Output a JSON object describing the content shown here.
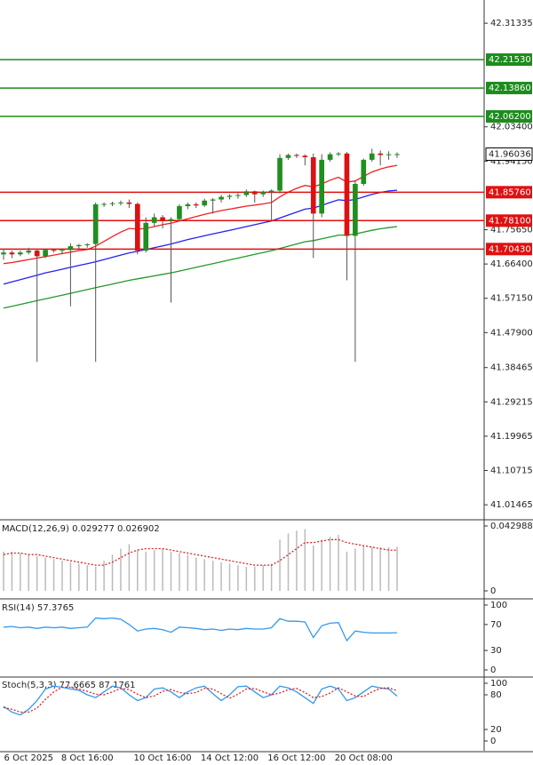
{
  "chart_data": [
    {
      "type": "candlestick",
      "ylim": [
        40.979,
        42.376
      ],
      "yticks": [
        42.31335,
        {
          "value": 42.034,
          "label": "42.03400"
        },
        {
          "value": 41.9415,
          "label": "41.94150"
        },
        {
          "value": 41.7565,
          "label": "41.75650"
        },
        {
          "value": 41.664,
          "label": "41.66400"
        },
        {
          "value": 41.5715,
          "label": "41.57150"
        },
        {
          "value": 41.479,
          "label": "41.47900"
        },
        41.38465,
        41.29215,
        41.19965,
        41.10715,
        41.01465
      ],
      "up_color": "#1f8f1f",
      "down_color": "#dd1111",
      "open": [
        41.69,
        41.695,
        41.69,
        41.695,
        41.7,
        41.685,
        41.702,
        41.7,
        41.702,
        41.712,
        41.715,
        41.718,
        41.825,
        41.826,
        41.828,
        41.83,
        41.826,
        41.7,
        41.775,
        41.79,
        41.78,
        41.785,
        41.82,
        41.825,
        41.822,
        41.835,
        41.838,
        41.845,
        41.848,
        41.85,
        41.86,
        41.852,
        41.858,
        41.862,
        41.95,
        41.958,
        41.956,
        41.952,
        41.8,
        41.945,
        41.96,
        41.962,
        41.74,
        41.88,
        41.945,
        41.962,
        41.958,
        41.96
      ],
      "high": [
        41.705,
        41.7,
        41.7,
        41.708,
        41.705,
        41.705,
        41.706,
        41.706,
        41.72,
        41.718,
        41.72,
        41.83,
        41.83,
        41.832,
        41.835,
        41.838,
        41.83,
        41.79,
        41.8,
        41.796,
        41.79,
        41.825,
        41.83,
        41.83,
        41.84,
        41.842,
        41.85,
        41.852,
        41.855,
        41.865,
        41.862,
        41.862,
        41.865,
        41.96,
        41.962,
        41.962,
        41.96,
        41.962,
        41.96,
        41.965,
        41.966,
        41.966,
        41.89,
        41.948,
        41.975,
        41.97,
        41.968,
        41.965
      ],
      "low": [
        41.675,
        41.68,
        41.685,
        41.69,
        41.4,
        41.68,
        41.695,
        41.69,
        41.55,
        41.705,
        41.708,
        41.4,
        41.818,
        41.82,
        41.822,
        41.815,
        41.69,
        41.695,
        41.765,
        41.76,
        41.56,
        41.78,
        41.812,
        41.815,
        41.818,
        41.8,
        41.83,
        41.838,
        41.84,
        41.845,
        41.83,
        41.845,
        41.78,
        41.855,
        41.945,
        41.95,
        41.93,
        41.68,
        41.79,
        41.94,
        41.955,
        41.62,
        41.4,
        41.875,
        41.94,
        41.93,
        41.945,
        41.95
      ],
      "close": [
        41.695,
        41.69,
        41.695,
        41.7,
        41.685,
        41.702,
        41.7,
        41.702,
        41.712,
        41.715,
        41.717,
        41.825,
        41.826,
        41.828,
        41.83,
        41.826,
        41.7,
        41.775,
        41.79,
        41.78,
        41.785,
        41.82,
        41.825,
        41.822,
        41.835,
        41.838,
        41.845,
        41.848,
        41.85,
        41.86,
        41.852,
        41.858,
        41.862,
        41.95,
        41.958,
        41.956,
        41.952,
        41.8,
        41.945,
        41.96,
        41.962,
        41.74,
        41.88,
        41.945,
        41.962,
        41.958,
        41.96,
        41.96036
      ],
      "overlays": [
        {
          "color": "#ee2222",
          "values": [
            41.665,
            41.668,
            41.672,
            41.676,
            41.68,
            41.684,
            41.688,
            41.692,
            41.696,
            41.7,
            41.703,
            41.712,
            41.725,
            41.738,
            41.75,
            41.76,
            41.758,
            41.76,
            41.765,
            41.77,
            41.774,
            41.78,
            41.786,
            41.792,
            41.798,
            41.803,
            41.808,
            41.812,
            41.816,
            41.82,
            41.823,
            41.826,
            41.83,
            41.845,
            41.858,
            41.868,
            41.876,
            41.872,
            41.88,
            41.89,
            41.898,
            41.885,
            41.888,
            41.9,
            41.912,
            41.92,
            41.926,
            41.93
          ]
        },
        {
          "color": "#2222ee",
          "values": [
            41.61,
            41.616,
            41.622,
            41.628,
            41.634,
            41.64,
            41.645,
            41.65,
            41.655,
            41.66,
            41.665,
            41.67,
            41.676,
            41.682,
            41.688,
            41.694,
            41.698,
            41.703,
            41.708,
            41.713,
            41.718,
            41.724,
            41.73,
            41.735,
            41.74,
            41.745,
            41.75,
            41.755,
            41.76,
            41.765,
            41.77,
            41.775,
            41.78,
            41.788,
            41.796,
            41.804,
            41.812,
            41.815,
            41.822,
            41.83,
            41.837,
            41.835,
            41.838,
            41.845,
            41.852,
            41.857,
            41.861,
            41.863
          ]
        },
        {
          "color": "#22992a",
          "values": [
            41.545,
            41.55,
            41.555,
            41.56,
            41.565,
            41.57,
            41.575,
            41.58,
            41.585,
            41.59,
            41.595,
            41.6,
            41.605,
            41.61,
            41.615,
            41.62,
            41.624,
            41.628,
            41.632,
            41.636,
            41.64,
            41.645,
            41.65,
            41.655,
            41.66,
            41.665,
            41.67,
            41.675,
            41.68,
            41.685,
            41.69,
            41.695,
            41.7,
            41.706,
            41.712,
            41.718,
            41.724,
            41.727,
            41.732,
            41.737,
            41.742,
            41.742,
            41.745,
            41.75,
            41.755,
            41.759,
            41.762,
            41.765
          ]
        }
      ],
      "levels": [
        {
          "value": 42.2153,
          "label": "42.21530",
          "color": "#1c8c1c"
        },
        {
          "value": 42.1386,
          "label": "42.13860",
          "color": "#1c8c1c"
        },
        {
          "value": 42.062,
          "label": "42.06200",
          "color": "#1c8c1c"
        },
        {
          "value": 41.8576,
          "label": "41.85760",
          "color": "#e01010"
        },
        {
          "value": 41.781,
          "label": "41.78100",
          "color": "#e01010"
        },
        {
          "value": 41.7043,
          "label": "41.70430",
          "color": "#e01010"
        }
      ],
      "last_price": {
        "value": 41.96036,
        "label": "41.96036",
        "color": "#000000"
      }
    },
    {
      "type": "macd",
      "title": "MACD(12,26,9) 0.029277 0.026902",
      "ylim": [
        -0.00412,
        0.04593
      ],
      "yticks": [
        0,
        0.042988
      ],
      "color": "#bbbbbb",
      "signal_color": "#e02020",
      "values": [
        0.026,
        0.026,
        0.025,
        0.024,
        0.023,
        0.022,
        0.021,
        0.02,
        0.019,
        0.018,
        0.017,
        0.016,
        0.02,
        0.024,
        0.028,
        0.031,
        0.027,
        0.026,
        0.027,
        0.028,
        0.026,
        0.025,
        0.024,
        0.022,
        0.021,
        0.02,
        0.019,
        0.018,
        0.017,
        0.016,
        0.016,
        0.017,
        0.018,
        0.034,
        0.038,
        0.04,
        0.041,
        0.03,
        0.034,
        0.036,
        0.037,
        0.026,
        0.028,
        0.03,
        0.029,
        0.029,
        0.029,
        0.029277
      ],
      "signal": [
        0.024,
        0.025,
        0.025,
        0.024,
        0.024,
        0.023,
        0.022,
        0.021,
        0.02,
        0.019,
        0.018,
        0.017,
        0.017,
        0.019,
        0.022,
        0.025,
        0.027,
        0.028,
        0.028,
        0.028,
        0.027,
        0.026,
        0.025,
        0.024,
        0.023,
        0.022,
        0.021,
        0.02,
        0.019,
        0.018,
        0.017,
        0.017,
        0.017,
        0.02,
        0.024,
        0.028,
        0.032,
        0.032,
        0.033,
        0.034,
        0.034,
        0.032,
        0.031,
        0.03,
        0.029,
        0.028,
        0.027,
        0.026902
      ]
    },
    {
      "type": "line",
      "title": "RSI(14) 57.3765",
      "ylim": [
        -8.2,
        106.8
      ],
      "yticks": [
        0,
        30,
        70,
        100
      ],
      "series": [
        {
          "color": "#3399ee",
          "values": [
            66,
            67,
            65,
            66,
            64,
            66,
            65,
            66,
            64,
            65,
            66,
            80,
            79,
            80,
            78,
            70,
            60,
            63,
            64,
            62,
            58,
            66,
            65,
            64,
            62,
            63,
            61,
            63,
            62,
            64,
            63,
            63,
            65,
            79,
            75,
            75,
            74,
            50,
            68,
            72,
            73,
            45,
            60,
            58,
            57,
            57,
            57,
            57.3765
          ]
        }
      ]
    },
    {
      "type": "line",
      "title": "Stoch(5,3,3) 77.6665 87.1761",
      "ylim": [
        -16.9,
        109.2
      ],
      "yticks": [
        0,
        20,
        80,
        100
      ],
      "series": [
        {
          "color": "#3399ee",
          "values": [
            60,
            50,
            45,
            55,
            70,
            90,
            95,
            93,
            90,
            88,
            80,
            75,
            85,
            95,
            92,
            80,
            70,
            75,
            90,
            92,
            85,
            75,
            85,
            92,
            95,
            82,
            70,
            80,
            94,
            95,
            85,
            75,
            80,
            95,
            92,
            85,
            75,
            65,
            90,
            95,
            90,
            70,
            75,
            85,
            95,
            92,
            90,
            77.6665
          ]
        },
        {
          "color": "#e02020",
          "dashed": true,
          "values": [
            58,
            55,
            50,
            50,
            57,
            72,
            85,
            93,
            93,
            90,
            86,
            81,
            80,
            85,
            91,
            89,
            81,
            75,
            78,
            86,
            89,
            84,
            82,
            84,
            91,
            90,
            82,
            74,
            81,
            90,
            91,
            85,
            80,
            83,
            89,
            91,
            84,
            75,
            77,
            83,
            92,
            85,
            78,
            77,
            85,
            91,
            92,
            87.1761
          ]
        }
      ],
      "categories": [
        null,
        null,
        null,
        "6 Oct 2025",
        null,
        null,
        null,
        null,
        null,
        null,
        "8 Oct 16:00",
        null,
        null,
        null,
        null,
        null,
        null,
        null,
        null,
        "10 Oct 16:00",
        null,
        null,
        null,
        null,
        null,
        null,
        null,
        "14 Oct 12:00",
        null,
        null,
        null,
        null,
        null,
        null,
        null,
        "16 Oct 12:00",
        null,
        null,
        null,
        null,
        null,
        null,
        null,
        "20 Oct 08:00",
        null,
        null,
        null,
        null
      ]
    }
  ]
}
